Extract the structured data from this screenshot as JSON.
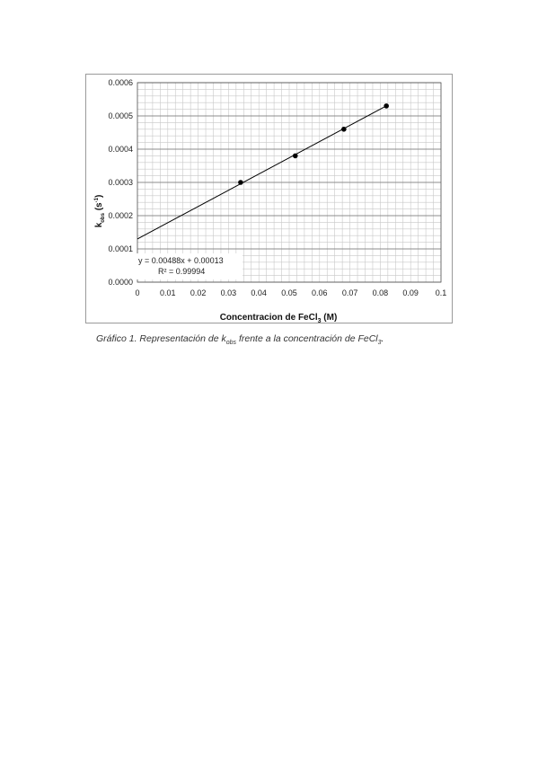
{
  "chart_data": {
    "type": "scatter",
    "title": "",
    "xlabel": "Concentracion  de FeCl",
    "xlabel_sub": "3",
    "xlabel_suffix": " (M)",
    "ylabel": "k",
    "ylabel_sub": "obs",
    "ylabel_suffix": " (s",
    "ylabel_sup": "-1",
    "ylabel_close": ")",
    "xlim": [
      0,
      0.1
    ],
    "ylim": [
      0.0,
      0.0006
    ],
    "x_ticks": [
      "0",
      "0.01",
      "0.02",
      "0.03",
      "0.04",
      "0.05",
      "0.06",
      "0.07",
      "0.08",
      "0.09",
      "0.1"
    ],
    "y_ticks": [
      "0.0000",
      "0.0001",
      "0.0002",
      "0.0003",
      "0.0004",
      "0.0005",
      "0.0006"
    ],
    "grid": true,
    "series": [
      {
        "x": [
          0.034,
          0.052,
          0.068,
          0.082
        ],
        "y": [
          0.0003,
          0.00038,
          0.00046,
          0.00053
        ],
        "marker": "circle",
        "color": "#000000"
      }
    ],
    "trendline": {
      "slope": 0.00488,
      "intercept": 0.00013,
      "x_range": [
        0,
        0.082
      ],
      "color": "#000000"
    },
    "annotations": {
      "equation": "y = 0.00488x + 0.00013",
      "r_squared": "R² = 0.99994"
    }
  },
  "caption": {
    "prefix": "Gráfico 1. Representación de k",
    "sub": "obs",
    "middle": " frente a la concentración de FeCl",
    "sub2": "3",
    "suffix": "."
  }
}
